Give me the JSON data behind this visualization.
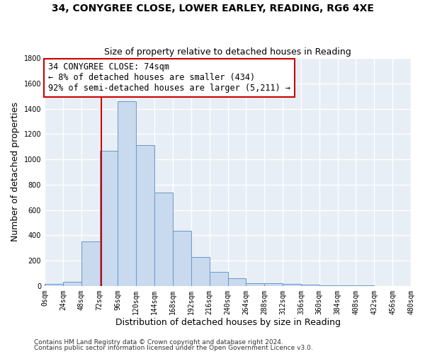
{
  "title": "34, CONYGREE CLOSE, LOWER EARLEY, READING, RG6 4XE",
  "subtitle": "Size of property relative to detached houses in Reading",
  "xlabel": "Distribution of detached houses by size in Reading",
  "ylabel": "Number of detached properties",
  "bin_edges": [
    0,
    24,
    48,
    72,
    96,
    120,
    144,
    168,
    192,
    216,
    240,
    264,
    288,
    312,
    336,
    360,
    384,
    408,
    432,
    456,
    480
  ],
  "bar_heights": [
    15,
    35,
    350,
    1070,
    1460,
    1110,
    740,
    435,
    230,
    110,
    58,
    20,
    20,
    15,
    10,
    5,
    3,
    2,
    1,
    1
  ],
  "bar_color": "#c9d9ee",
  "bar_edge_color": "#6699cc",
  "vline_x": 74,
  "vline_color": "#cc0000",
  "annotation_text": "34 CONYGREE CLOSE: 74sqm\n← 8% of detached houses are smaller (434)\n92% of semi-detached houses are larger (5,211) →",
  "annotation_box_color": "#ffffff",
  "annotation_box_edge_color": "#cc0000",
  "ylim": [
    0,
    1800
  ],
  "yticks": [
    0,
    200,
    400,
    600,
    800,
    1000,
    1200,
    1400,
    1600,
    1800
  ],
  "xtick_labels": [
    "0sqm",
    "24sqm",
    "48sqm",
    "72sqm",
    "96sqm",
    "120sqm",
    "144sqm",
    "168sqm",
    "192sqm",
    "216sqm",
    "240sqm",
    "264sqm",
    "288sqm",
    "312sqm",
    "336sqm",
    "360sqm",
    "384sqm",
    "408sqm",
    "432sqm",
    "456sqm",
    "480sqm"
  ],
  "footnote1": "Contains HM Land Registry data © Crown copyright and database right 2024.",
  "footnote2": "Contains public sector information licensed under the Open Government Licence v3.0.",
  "background_color": "#ffffff",
  "plot_bg_color": "#e8eef5",
  "grid_color": "#ffffff",
  "title_fontsize": 10,
  "subtitle_fontsize": 9,
  "axis_label_fontsize": 9,
  "tick_fontsize": 7,
  "footnote_fontsize": 6.5,
  "annotation_fontsize": 8.5
}
